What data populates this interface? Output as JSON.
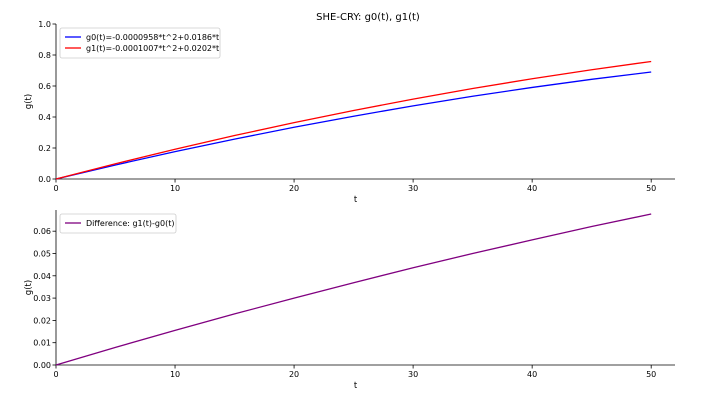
{
  "figure": {
    "title": "SHE-CRY: g0(t), g1(t)"
  },
  "chart_data": [
    {
      "type": "line",
      "title": "SHE-CRY: g0(t), g1(t)",
      "xlabel": "t",
      "ylabel": "g(t)",
      "xlim": [
        0,
        52
      ],
      "ylim": [
        0,
        1.0
      ],
      "xticks": [
        0,
        10,
        20,
        30,
        40,
        50
      ],
      "yticks": [
        0.0,
        0.2,
        0.4,
        0.6,
        0.8,
        1.0
      ],
      "x_tick_labels": [
        "0",
        "10",
        "20",
        "30",
        "40",
        "50"
      ],
      "y_tick_labels": [
        "0.0",
        "0.2",
        "0.4",
        "0.6",
        "0.8",
        "1.0"
      ],
      "x": [
        0,
        5,
        10,
        15,
        20,
        25,
        30,
        35,
        40,
        45,
        50
      ],
      "series": [
        {
          "name": "g0(t)=-0.0000958*t^2+0.0186*t",
          "color": "#0000ff",
          "values": [
            0.0,
            0.0906,
            0.1764,
            0.2574,
            0.3337,
            0.4051,
            0.4718,
            0.5337,
            0.5907,
            0.643,
            0.6905
          ]
        },
        {
          "name": "g1(t)=-0.0001007*t^2+0.0202*t",
          "color": "#ff0000",
          "values": [
            0.0,
            0.0985,
            0.1919,
            0.2803,
            0.3637,
            0.4421,
            0.5154,
            0.5836,
            0.6469,
            0.7051,
            0.7583
          ]
        }
      ],
      "legend": "top-left",
      "grid": false
    },
    {
      "type": "line",
      "title": "",
      "xlabel": "t",
      "ylabel": "g(t)",
      "xlim": [
        0,
        52
      ],
      "ylim": [
        0,
        0.0695
      ],
      "xticks": [
        0,
        10,
        20,
        30,
        40,
        50
      ],
      "yticks": [
        0.0,
        0.01,
        0.02,
        0.03,
        0.04,
        0.05,
        0.06
      ],
      "x_tick_labels": [
        "0",
        "10",
        "20",
        "30",
        "40",
        "50"
      ],
      "y_tick_labels": [
        "0.00",
        "0.01",
        "0.02",
        "0.03",
        "0.04",
        "0.05",
        "0.06"
      ],
      "x": [
        0,
        5,
        10,
        15,
        20,
        25,
        30,
        35,
        40,
        45,
        50
      ],
      "series": [
        {
          "name": "Difference: g1(t)-g0(t)",
          "color": "#800080",
          "values": [
            0.0,
            0.0079,
            0.0155,
            0.0229,
            0.03,
            0.0369,
            0.0436,
            0.05,
            0.0561,
            0.0621,
            0.0677
          ]
        }
      ],
      "legend": "top-left",
      "grid": false
    }
  ]
}
